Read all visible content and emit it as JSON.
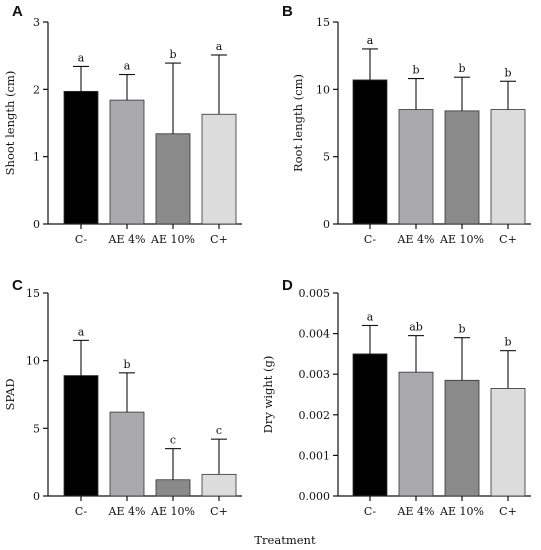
{
  "xlabel": "Treatment",
  "colors": {
    "C-": "#000000",
    "AE 4%": "#a9a9ae",
    "AE 10%": "#8a8a8a",
    "C+": "#dcdcdc",
    "axis": "#111111"
  },
  "chart_data": [
    {
      "type": "bar",
      "panel": "A",
      "ylabel": "Shoot length (cm)",
      "categories": [
        "C-",
        "AE 4%",
        "AE 10%",
        "C+"
      ],
      "values": [
        1.97,
        1.84,
        1.34,
        1.63
      ],
      "errors": [
        0.37,
        0.38,
        1.05,
        0.88
      ],
      "letters": [
        "a",
        "a",
        "b",
        "a"
      ],
      "ylim": [
        0,
        3
      ],
      "yticks": [
        0,
        1,
        2,
        3
      ],
      "yticklabels": [
        "0",
        "1",
        "2",
        "3"
      ]
    },
    {
      "type": "bar",
      "panel": "B",
      "ylabel": "Root length (cm)",
      "categories": [
        "C-",
        "AE 4%",
        "AE 10%",
        "C+"
      ],
      "values": [
        10.7,
        8.5,
        8.4,
        8.5
      ],
      "errors": [
        2.3,
        2.3,
        2.5,
        2.1
      ],
      "letters": [
        "a",
        "b",
        "b",
        "b"
      ],
      "ylim": [
        0,
        15
      ],
      "yticks": [
        0,
        5,
        10,
        15
      ],
      "yticklabels": [
        "0",
        "5",
        "10",
        "15"
      ]
    },
    {
      "type": "bar",
      "panel": "C",
      "ylabel": "SPAD",
      "categories": [
        "C-",
        "AE 4%",
        "AE 10%",
        "C+"
      ],
      "values": [
        8.9,
        6.2,
        1.2,
        1.6
      ],
      "errors": [
        2.6,
        2.9,
        2.3,
        2.6
      ],
      "letters": [
        "a",
        "b",
        "c",
        "c"
      ],
      "ylim": [
        0,
        15
      ],
      "yticks": [
        0,
        5,
        10,
        15
      ],
      "yticklabels": [
        "0",
        "5",
        "10",
        "15"
      ]
    },
    {
      "type": "bar",
      "panel": "D",
      "ylabel": "Dry wight (g)",
      "categories": [
        "C-",
        "AE 4%",
        "AE 10%",
        "C+"
      ],
      "values": [
        0.0035,
        0.00305,
        0.00285,
        0.00265
      ],
      "errors": [
        0.0007,
        0.0009,
        0.00105,
        0.00093
      ],
      "letters": [
        "a",
        "ab",
        "b",
        "b"
      ],
      "ylim": [
        0,
        0.005
      ],
      "yticks": [
        0,
        0.001,
        0.002,
        0.003,
        0.004,
        0.005
      ],
      "yticklabels": [
        "0.000",
        "0.001",
        "0.002",
        "0.003",
        "0.004",
        "0.005"
      ]
    }
  ]
}
